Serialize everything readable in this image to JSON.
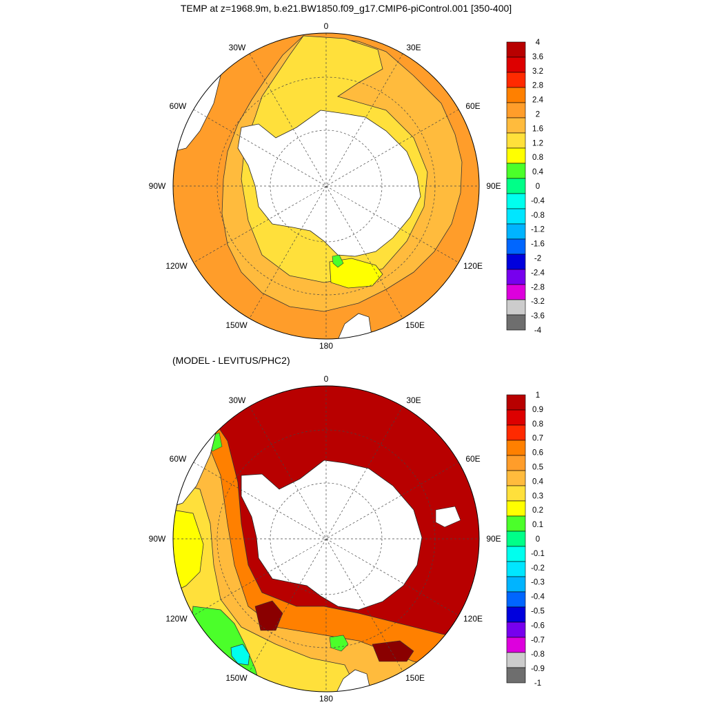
{
  "chart_data": [
    {
      "type": "heatmap",
      "projection": "south-polar-stereographic",
      "title": "TEMP at z=1968.9m, b.e21.BW1850.f09_g17.CMIP6-piControl.001 [350-400]",
      "longitude_labels": [
        "0",
        "30E",
        "60E",
        "90E",
        "120E",
        "150E",
        "180",
        "150W",
        "120W",
        "90W",
        "60W",
        "30W"
      ],
      "colorbar": {
        "min": -4,
        "max": 4,
        "step": 0.4,
        "tick_labels": [
          "4",
          "3.6",
          "3.2",
          "2.8",
          "2.4",
          "2",
          "1.6",
          "1.2",
          "0.8",
          "0.4",
          "0",
          "-0.4",
          "-0.8",
          "-1.2",
          "-1.6",
          "-2",
          "-2.4",
          "-2.8",
          "-3.2",
          "-3.6",
          "-4"
        ],
        "colors": [
          "#b80000",
          "#dd0000",
          "#ff2a00",
          "#ff8000",
          "#ff9d2a",
          "#ffbb3d",
          "#ffe03b",
          "#ffff00",
          "#4bff2a",
          "#00ff88",
          "#00ffee",
          "#00e6ff",
          "#00b4ff",
          "#0066ff",
          "#0000dd",
          "#7700ee",
          "#dd00dd",
          "#cccccc",
          "#6e6e6e"
        ]
      },
      "regions": [
        {
          "name": "coastal-belt",
          "approx_value": 1.4
        },
        {
          "name": "middle-belt",
          "approx_value": 1.9
        },
        {
          "name": "outer-belt",
          "approx_value": 2.3
        },
        {
          "name": "ross-sea-pocket",
          "approx_value": 1.1
        }
      ]
    },
    {
      "type": "heatmap",
      "projection": "south-polar-stereographic",
      "title": "(MODEL - LEVITUS/PHC2)",
      "longitude_labels": [
        "0",
        "30E",
        "60E",
        "90E",
        "120E",
        "150E",
        "180",
        "150W",
        "120W",
        "90W",
        "60W",
        "30W"
      ],
      "colorbar": {
        "min": -1,
        "max": 1,
        "step": 0.1,
        "tick_labels": [
          "1",
          "0.9",
          "0.8",
          "0.7",
          "0.6",
          "0.5",
          "0.4",
          "0.3",
          "0.2",
          "0.1",
          "0",
          "-0.1",
          "-0.2",
          "-0.3",
          "-0.4",
          "-0.5",
          "-0.6",
          "-0.7",
          "-0.8",
          "-0.9",
          "-1"
        ],
        "colors": [
          "#b80000",
          "#dd0000",
          "#ff2a00",
          "#ff8000",
          "#ff9d2a",
          "#ffbb3d",
          "#ffe03b",
          "#ffff00",
          "#4bff2a",
          "#00ff88",
          "#00ffee",
          "#00e6ff",
          "#00b4ff",
          "#0066ff",
          "#0000dd",
          "#7700ee",
          "#dd00dd",
          "#cccccc",
          "#6e6e6e"
        ]
      },
      "regions": [
        {
          "name": "eastern-hemisphere-warm-bias",
          "approx_value": 1.0
        },
        {
          "name": "pacific-sector",
          "approx_value": 0.4
        },
        {
          "name": "south-pacific-west",
          "approx_value": 0.3
        },
        {
          "name": "green-anomaly",
          "approx_value": 0.15
        },
        {
          "name": "cyan-anomaly",
          "approx_value": -0.05
        }
      ]
    }
  ]
}
